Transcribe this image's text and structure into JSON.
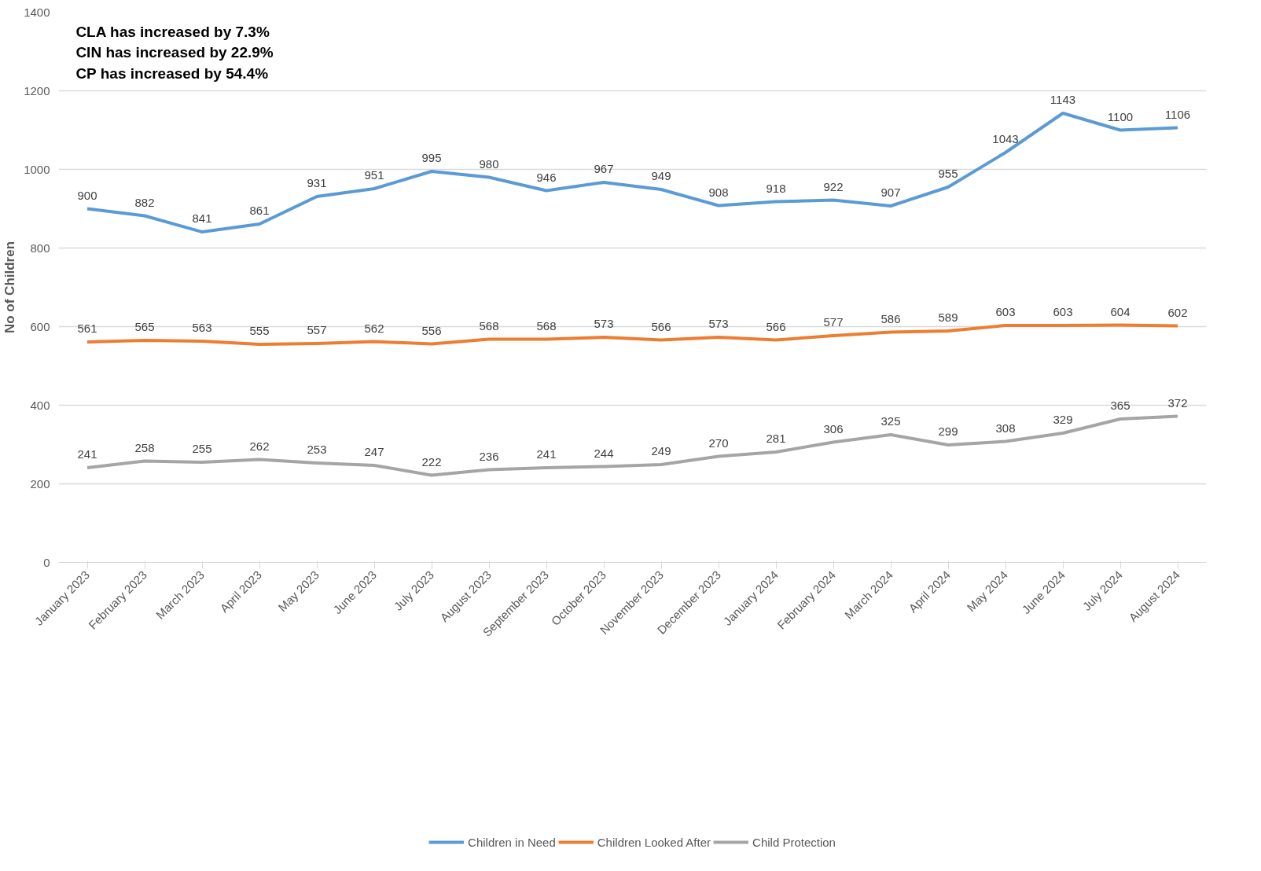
{
  "chart_data": {
    "type": "line",
    "ylabel": "No of Children",
    "categories": [
      "January 2023",
      "February 2023",
      "March 2023",
      "April 2023",
      "May 2023",
      "June 2023",
      "July 2023",
      "August 2023",
      "September 2023",
      "October 2023",
      "November 2023",
      "December 2023",
      "January 2024",
      "February 2024",
      "March 2024",
      "April 2024",
      "May 2024",
      "June 2024",
      "July 2024",
      "August 2024"
    ],
    "series": [
      {
        "name": "Children in Need",
        "color": "#5b9bd5",
        "values": [
          900,
          882,
          841,
          861,
          931,
          951,
          995,
          980,
          946,
          967,
          949,
          908,
          918,
          922,
          907,
          955,
          1043,
          1143,
          1100,
          1106
        ]
      },
      {
        "name": "Children Looked After",
        "color": "#ed7d31",
        "values": [
          561,
          565,
          563,
          555,
          557,
          562,
          556,
          568,
          568,
          573,
          566,
          573,
          566,
          577,
          586,
          589,
          603,
          603,
          604,
          602
        ]
      },
      {
        "name": "Child Protection",
        "color": "#a5a5a5",
        "values": [
          241,
          258,
          255,
          262,
          253,
          247,
          222,
          236,
          241,
          244,
          249,
          270,
          281,
          306,
          325,
          299,
          308,
          329,
          365,
          372
        ]
      }
    ],
    "ylim": [
      0,
      1400
    ],
    "yticks": [
      0,
      200,
      400,
      600,
      800,
      1000,
      1200,
      1400
    ],
    "grid": "y",
    "legend": "bottom",
    "data_labels": true,
    "marker": "none",
    "line_style": "solid",
    "annotations": [
      "CLA has increased by 7.3%",
      "CIN has increased by  22.9%",
      "CP has increased by 54.4%"
    ]
  }
}
